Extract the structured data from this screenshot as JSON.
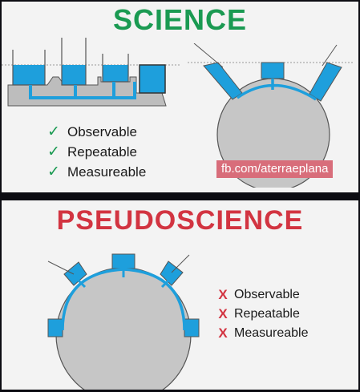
{
  "science": {
    "title": "SCIENCE",
    "criteria": [
      {
        "mark": "✓",
        "label": "Observable"
      },
      {
        "mark": "✓",
        "label": "Repeatable"
      },
      {
        "mark": "✓",
        "label": "Measureable"
      }
    ]
  },
  "watermark": "fb.com/aterraeplana",
  "pseudoscience": {
    "title": "PSEUDOSCIENCE",
    "criteria": [
      {
        "mark": "X",
        "label": "Observable"
      },
      {
        "mark": "X",
        "label": "Repeatable"
      },
      {
        "mark": "X",
        "label": "Measureable"
      }
    ]
  },
  "colors": {
    "science_green": "#1a9a52",
    "pseudo_red": "#d23441",
    "water_blue": "#1e9fdc",
    "ground_gray": "#bdbdbd",
    "outline": "#555555",
    "watermark_bg": "#d86d7a"
  }
}
